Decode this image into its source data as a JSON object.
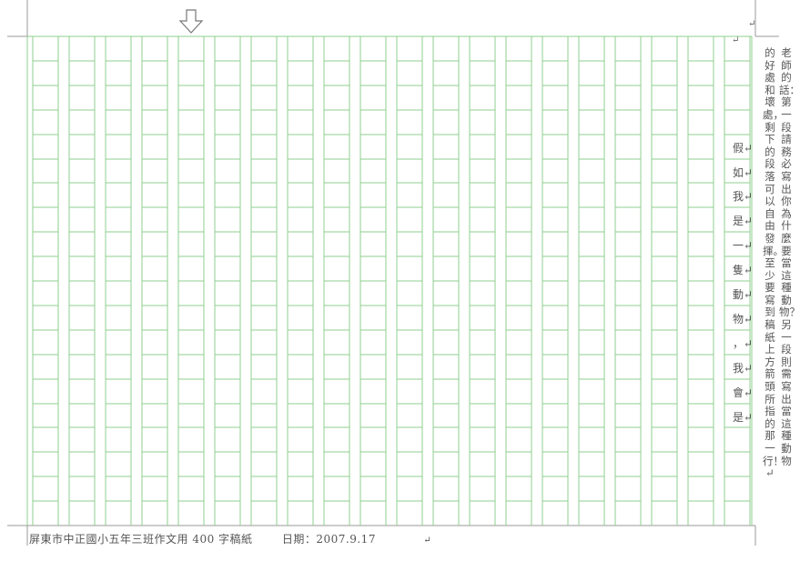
{
  "header": {
    "top_right_mark": "↵",
    "column_top_mark": "↵"
  },
  "icons": {
    "start_column_arrow": "down-arrow-icon"
  },
  "notes": {
    "column_1": "老師的話：第一段請務必寫出你為什麼要當這種動物？另一段則需寫出當這種動物",
    "column_2": "的好處和壞處，剩下的段落可以自由發揮。至少要寫到稿紙上方箭頭所指的那一行！↵"
  },
  "draft_column": {
    "chars": [
      "假↵",
      "如↵",
      "我↵",
      "是↵",
      "一↵",
      "隻↵",
      "動↵",
      "物↵",
      "，↵",
      "我↵",
      "會↵",
      "是↵"
    ]
  },
  "footer": {
    "school_label": "屏東市中正國小五年三班作文用 400 字稿紙",
    "date_label": "日期：2007.9.17",
    "end_mark": "↵"
  },
  "colors": {
    "grid_line": "#8fcf8f",
    "frame_line": "#9a9a9a",
    "text": "#555555"
  }
}
